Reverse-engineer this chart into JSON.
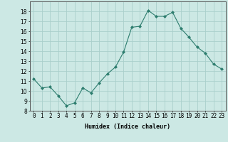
{
  "x": [
    0,
    1,
    2,
    3,
    4,
    5,
    6,
    7,
    8,
    9,
    10,
    11,
    12,
    13,
    14,
    15,
    16,
    17,
    18,
    19,
    20,
    21,
    22,
    23
  ],
  "y": [
    11.2,
    10.3,
    10.4,
    9.5,
    8.5,
    8.8,
    10.3,
    9.8,
    10.8,
    11.7,
    12.4,
    13.9,
    16.4,
    16.5,
    18.1,
    17.5,
    17.5,
    17.9,
    16.3,
    15.4,
    14.4,
    13.8,
    12.7,
    12.2
  ],
  "line_color": "#2d7d6e",
  "marker": "D",
  "marker_size": 2.0,
  "bg_color": "#cce8e4",
  "grid_color": "#aacfcb",
  "xlabel": "Humidex (Indice chaleur)",
  "ylim": [
    8,
    19
  ],
  "xlim": [
    -0.5,
    23.5
  ],
  "yticks": [
    8,
    9,
    10,
    11,
    12,
    13,
    14,
    15,
    16,
    17,
    18
  ],
  "xtick_labels": [
    "0",
    "1",
    "2",
    "3",
    "4",
    "5",
    "6",
    "7",
    "8",
    "9",
    "10",
    "11",
    "12",
    "13",
    "14",
    "15",
    "16",
    "17",
    "18",
    "19",
    "20",
    "21",
    "22",
    "23"
  ],
  "label_fontsize": 6.0,
  "tick_fontsize": 5.5,
  "linewidth": 0.8
}
